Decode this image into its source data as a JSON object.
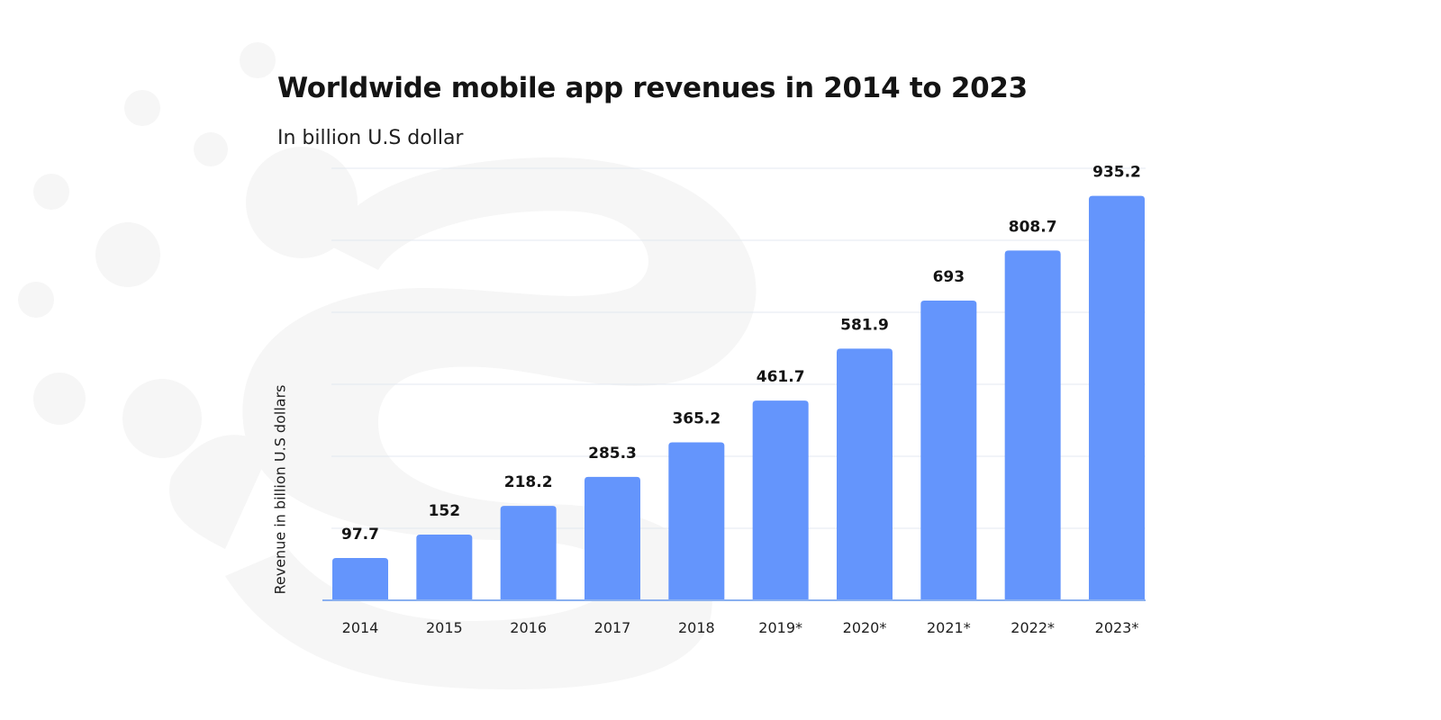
{
  "chart_data": {
    "type": "bar",
    "title": "Worldwide mobile app revenues in 2014 to 2023",
    "subtitle": "In billion U.S dollar",
    "xlabel": "",
    "ylabel": "Revenue in billion U.S dollars",
    "categories": [
      "2014",
      "2015",
      "2016",
      "2017",
      "2018",
      "2019*",
      "2020*",
      "2021*",
      "2022*",
      "2023*"
    ],
    "values": [
      97.7,
      152,
      218.2,
      285.3,
      365.2,
      461.7,
      581.9,
      693,
      808.7,
      935.2
    ],
    "data_labels": [
      "97.7",
      "152",
      "218.2",
      "285.3",
      "365.2",
      "461.7",
      "581.9",
      "693",
      "808.7",
      "935.2"
    ],
    "ylim": [
      0,
      1000
    ],
    "grid": true,
    "legend": "none",
    "colors": {
      "bar": "#6495fc",
      "baseline": "#8ab0f0",
      "grid": "#e3e8f0",
      "watermark": "#f6f6f6"
    }
  }
}
